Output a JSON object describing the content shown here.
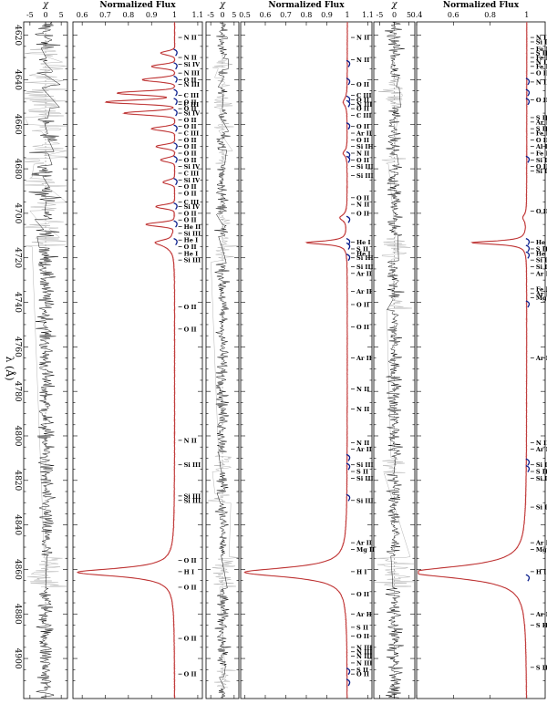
{
  "chart_data": {
    "type": "line",
    "orientation": "rotated",
    "xlabel": "λ (Å)",
    "x_ticks": [
      4620,
      4640,
      4660,
      4680,
      4700,
      4720,
      4740,
      4760,
      4780,
      4800,
      4820,
      4840,
      4860,
      4880,
      4900
    ],
    "xlim": [
      4614,
      4918
    ],
    "colors": {
      "observed": "#f2b0b0",
      "model": "#b22222",
      "residual": "#111111",
      "masked": "#b5b5b5",
      "line_id": "#0a1e8c"
    },
    "panels": [
      {
        "residual_label": "χ",
        "residual_ticks": [
          "-5",
          "0",
          "5"
        ],
        "residual_lim": [
          -7,
          7
        ],
        "flux_label": "Normalized Flux",
        "flux_ticks": [
          "0.6",
          "0.7",
          "0.8",
          "0.9",
          "1",
          "1.1"
        ],
        "flux_lim": [
          0.56,
          1.12
        ],
        "profile": [
          {
            "c": 4861.3,
            "depth": 0.42,
            "w": 2.2
          },
          {
            "c": 4714,
            "depth": 0.05,
            "w": 2.5
          }
        ],
        "wind_lines": [
          4628,
          4634,
          4640,
          4646,
          4650,
          4655,
          4662,
          4670,
          4676,
          4686,
          4697,
          4705,
          4713
        ],
        "blend_depths": [
          0.06,
          0.1,
          0.14,
          0.25,
          0.3,
          0.22,
          0.1,
          0.08,
          0.06,
          0.05,
          0.08,
          0.12,
          0.04
        ],
        "lines": [
          {
            "x": 4621,
            "label": "N II"
          },
          {
            "x": 4630,
            "label": "N II"
          },
          {
            "x": 4633,
            "label": "Si IV"
          },
          {
            "x": 4637,
            "label": "N III"
          },
          {
            "x": 4640,
            "label": "O II"
          },
          {
            "x": 4642,
            "label": "N III"
          },
          {
            "x": 4647,
            "label": "C III"
          },
          {
            "x": 4650,
            "label": "O II"
          },
          {
            "x": 4651,
            "label": "C III"
          },
          {
            "x": 4653,
            "label": "O II"
          },
          {
            "x": 4655,
            "label": "Si IV"
          },
          {
            "x": 4658,
            "label": "O II"
          },
          {
            "x": 4661,
            "label": "O II"
          },
          {
            "x": 4664,
            "label": "C III"
          },
          {
            "x": 4667,
            "label": "O II"
          },
          {
            "x": 4670,
            "label": "O II"
          },
          {
            "x": 4673,
            "label": "O II"
          },
          {
            "x": 4676,
            "label": "O II"
          },
          {
            "x": 4679,
            "label": "Si IV"
          },
          {
            "x": 4682,
            "label": "C III"
          },
          {
            "x": 4685,
            "label": "Si IV"
          },
          {
            "x": 4688,
            "label": "O II"
          },
          {
            "x": 4691,
            "label": "O II"
          },
          {
            "x": 4695,
            "label": "C III"
          },
          {
            "x": 4697,
            "label": "Si IV"
          },
          {
            "x": 4700,
            "label": "O II"
          },
          {
            "x": 4703,
            "label": "O II"
          },
          {
            "x": 4706,
            "label": "He II"
          },
          {
            "x": 4709,
            "label": "Si III"
          },
          {
            "x": 4712,
            "label": "He I"
          },
          {
            "x": 4715,
            "label": "O II"
          },
          {
            "x": 4718,
            "label": "He I"
          },
          {
            "x": 4721,
            "label": "Si III"
          },
          {
            "x": 4742,
            "label": "O II"
          },
          {
            "x": 4752,
            "label": "O II"
          },
          {
            "x": 4802,
            "label": "N II"
          },
          {
            "x": 4813,
            "label": "Si III"
          },
          {
            "x": 4829,
            "label": "Si III"
          },
          {
            "x": 4827,
            "label": "Si III"
          },
          {
            "x": 4856,
            "label": "O II"
          },
          {
            "x": 4861,
            "label": "H I"
          },
          {
            "x": 4868,
            "label": "O II"
          },
          {
            "x": 4891,
            "label": "O II"
          },
          {
            "x": 4907,
            "label": "O II"
          }
        ]
      },
      {
        "residual_label": "χ",
        "residual_ticks": [
          "-5",
          "0",
          "5"
        ],
        "residual_lim": [
          -7,
          7
        ],
        "flux_label": "Normalized Flux",
        "flux_ticks": [
          "0.5",
          "0.6",
          "0.7",
          "0.8",
          "0.9",
          "1",
          "1.1"
        ],
        "flux_lim": [
          0.48,
          1.12
        ],
        "profile": [
          {
            "c": 4861.3,
            "depth": 0.5,
            "w": 2.6
          },
          {
            "c": 4713.2,
            "depth": 0.2,
            "w": 0.9
          },
          {
            "c": 4702,
            "depth": 0.035,
            "w": 1.6
          },
          {
            "c": 4650,
            "depth": 0.02,
            "w": 2.0
          },
          {
            "c": 4673,
            "depth": 0.02,
            "w": 1.5
          }
        ],
        "wind_lines": [
          4633,
          4641,
          4649,
          4651,
          4661,
          4674,
          4676,
          4703,
          4713,
          4715,
          4720,
          4810,
          4814,
          4828,
          4906,
          4911
        ],
        "lines": [
          {
            "x": 4621,
            "label": "N II"
          },
          {
            "x": 4631,
            "label": "N II"
          },
          {
            "x": 4642,
            "label": "O II"
          },
          {
            "x": 4647,
            "label": "C III"
          },
          {
            "x": 4649,
            "label": "O II"
          },
          {
            "x": 4651,
            "label": "N III"
          },
          {
            "x": 4653,
            "label": "O II"
          },
          {
            "x": 4656,
            "label": "C III"
          },
          {
            "x": 4661,
            "label": "O II"
          },
          {
            "x": 4664,
            "label": "Ar II"
          },
          {
            "x": 4667,
            "label": "O II"
          },
          {
            "x": 4670,
            "label": "Si III"
          },
          {
            "x": 4673,
            "label": "N II"
          },
          {
            "x": 4676,
            "label": "O II"
          },
          {
            "x": 4679,
            "label": "Si III"
          },
          {
            "x": 4683,
            "label": "Si III"
          },
          {
            "x": 4693,
            "label": "O II"
          },
          {
            "x": 4696,
            "label": "N II"
          },
          {
            "x": 4700,
            "label": "O II"
          },
          {
            "x": 4713,
            "label": "He I"
          },
          {
            "x": 4716,
            "label": "S II"
          },
          {
            "x": 4718,
            "label": "He I"
          },
          {
            "x": 4720,
            "label": "Si III"
          },
          {
            "x": 4724,
            "label": "Si III"
          },
          {
            "x": 4727,
            "label": "Ar II"
          },
          {
            "x": 4735,
            "label": "Ar II"
          },
          {
            "x": 4741,
            "label": "O II"
          },
          {
            "x": 4751,
            "label": "O II"
          },
          {
            "x": 4765,
            "label": "Ar II"
          },
          {
            "x": 4779,
            "label": "N II"
          },
          {
            "x": 4788,
            "label": "N II"
          },
          {
            "x": 4803,
            "label": "N II"
          },
          {
            "x": 4806,
            "label": "Ar II"
          },
          {
            "x": 4813,
            "label": "Si III"
          },
          {
            "x": 4816,
            "label": "S II"
          },
          {
            "x": 4819,
            "label": "Si III"
          },
          {
            "x": 4829,
            "label": "Si III"
          },
          {
            "x": 4848,
            "label": "Ar II"
          },
          {
            "x": 4851,
            "label": "Mg II"
          },
          {
            "x": 4861,
            "label": "H I"
          },
          {
            "x": 4871,
            "label": "O II"
          },
          {
            "x": 4880,
            "label": "Ar II"
          },
          {
            "x": 4886,
            "label": "S II"
          },
          {
            "x": 4890,
            "label": "O II"
          },
          {
            "x": 4895,
            "label": "N III"
          },
          {
            "x": 4897,
            "label": "N III"
          },
          {
            "x": 4899,
            "label": "N III"
          },
          {
            "x": 4902,
            "label": "N III"
          },
          {
            "x": 4905,
            "label": "S II"
          },
          {
            "x": 4907,
            "label": "O II"
          }
        ]
      },
      {
        "residual_label": "χ",
        "residual_ticks": [
          "-5",
          "0",
          "5"
        ],
        "residual_lim": [
          -7,
          7
        ],
        "flux_label": "Normalized Flux",
        "flux_ticks": [
          "0.4",
          "0.6",
          "0.8",
          "1"
        ],
        "flux_lim": [
          0.4,
          1.1
        ],
        "profile": [
          {
            "c": 4861.3,
            "depth": 0.62,
            "w": 3.4
          },
          {
            "c": 4713.2,
            "depth": 0.3,
            "w": 0.9
          },
          {
            "c": 4702,
            "depth": 0.02,
            "w": 1.8
          }
        ],
        "wind_lines": [
          4641,
          4646,
          4650,
          4676,
          4713,
          4716,
          4719,
          4741,
          4812,
          4815,
          4864
        ],
        "lines": [
          {
            "x": 4621,
            "label": "N II"
          },
          {
            "x": 4623,
            "label": "Si II"
          },
          {
            "x": 4626,
            "label": "Fe II"
          },
          {
            "x": 4628,
            "label": "S II"
          },
          {
            "x": 4630,
            "label": "Fe II"
          },
          {
            "x": 4632,
            "label": "N II"
          },
          {
            "x": 4634,
            "label": "Fe II"
          },
          {
            "x": 4637,
            "label": "O II"
          },
          {
            "x": 4641,
            "label": "N II"
          },
          {
            "x": 4649,
            "label": "O II"
          },
          {
            "x": 4657,
            "label": "S II"
          },
          {
            "x": 4659,
            "label": "Ar II"
          },
          {
            "x": 4662,
            "label": "S II"
          },
          {
            "x": 4664,
            "label": "Fe II"
          },
          {
            "x": 4667,
            "label": "O II"
          },
          {
            "x": 4670,
            "label": "Al II"
          },
          {
            "x": 4673,
            "label": "Fe II"
          },
          {
            "x": 4676,
            "label": "Si II"
          },
          {
            "x": 4679,
            "label": "O II"
          },
          {
            "x": 4681,
            "label": "Si II"
          },
          {
            "x": 4699,
            "label": "O II"
          },
          {
            "x": 4713,
            "label": "He I"
          },
          {
            "x": 4716,
            "label": "S II"
          },
          {
            "x": 4718,
            "label": "He I"
          },
          {
            "x": 4721,
            "label": "Si II"
          },
          {
            "x": 4724,
            "label": "Si II"
          },
          {
            "x": 4727,
            "label": "Ar II"
          },
          {
            "x": 4734,
            "label": "Fe II"
          },
          {
            "x": 4736,
            "label": "Ar II"
          },
          {
            "x": 4738,
            "label": "Mg II"
          },
          {
            "x": 4765,
            "label": "Ar II"
          },
          {
            "x": 4803,
            "label": "N II"
          },
          {
            "x": 4806,
            "label": "Ar II"
          },
          {
            "x": 4813,
            "label": "Si II"
          },
          {
            "x": 4816,
            "label": "S II"
          },
          {
            "x": 4819,
            "label": "Si II"
          },
          {
            "x": 4832,
            "label": "Si II"
          },
          {
            "x": 4848,
            "label": "Ar II"
          },
          {
            "x": 4851,
            "label": "Mg II"
          },
          {
            "x": 4861,
            "label": "H I"
          },
          {
            "x": 4880,
            "label": "Ar II"
          },
          {
            "x": 4885,
            "label": "S II"
          },
          {
            "x": 4904,
            "label": "S II"
          }
        ]
      }
    ]
  }
}
